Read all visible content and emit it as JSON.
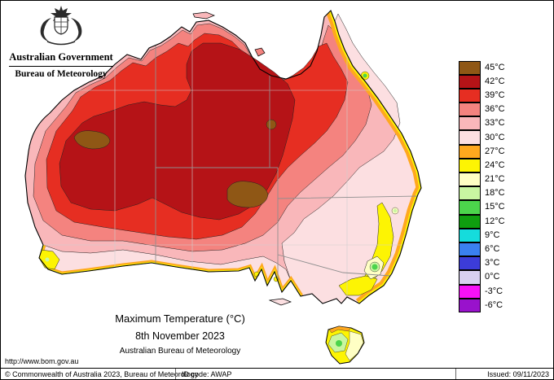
{
  "header": {
    "government": "Australian Government",
    "bureau": "Bureau of Meteorology"
  },
  "title_block": {
    "title": "Maximum Temperature (°C)",
    "date": "8th November 2023",
    "org": "Australian Bureau of Meteorology"
  },
  "legend": {
    "entries": [
      {
        "value": 45,
        "label": "45°C",
        "color": "#8f5715"
      },
      {
        "value": 42,
        "label": "42°C",
        "color": "#b51317"
      },
      {
        "value": 39,
        "label": "39°C",
        "color": "#e62e22"
      },
      {
        "value": 36,
        "label": "36°C",
        "color": "#f4837f"
      },
      {
        "value": 33,
        "label": "33°C",
        "color": "#f9b7ba"
      },
      {
        "value": 30,
        "label": "30°C",
        "color": "#fcdfe1"
      },
      {
        "value": 27,
        "label": "27°C",
        "color": "#ffa81e"
      },
      {
        "value": 24,
        "label": "24°C",
        "color": "#fdf403"
      },
      {
        "value": 21,
        "label": "21°C",
        "color": "#ffffc4"
      },
      {
        "value": 18,
        "label": "18°C",
        "color": "#c9f6a1"
      },
      {
        "value": 15,
        "label": "15°C",
        "color": "#4cd44c"
      },
      {
        "value": 12,
        "label": "12°C",
        "color": "#0f9e0f"
      },
      {
        "value": 9,
        "label": "9°C",
        "color": "#15dcdc"
      },
      {
        "value": 6,
        "label": "6°C",
        "color": "#3a80f0"
      },
      {
        "value": 3,
        "label": "3°C",
        "color": "#3c3cd9"
      },
      {
        "value": 0,
        "label": "0°C",
        "color": "#d8d0f0"
      },
      {
        "value": -3,
        "label": "-3°C",
        "color": "#f711f7"
      },
      {
        "value": -6,
        "label": "-6°C",
        "color": "#9912cc"
      }
    ]
  },
  "footer": {
    "url": "http://www.bom.gov.au",
    "copyright": "© Commonwealth of Australia 2023, Bureau of Meteorology",
    "id_code": "ID code: AWAP",
    "issued": "Issued: 09/11/2023"
  }
}
